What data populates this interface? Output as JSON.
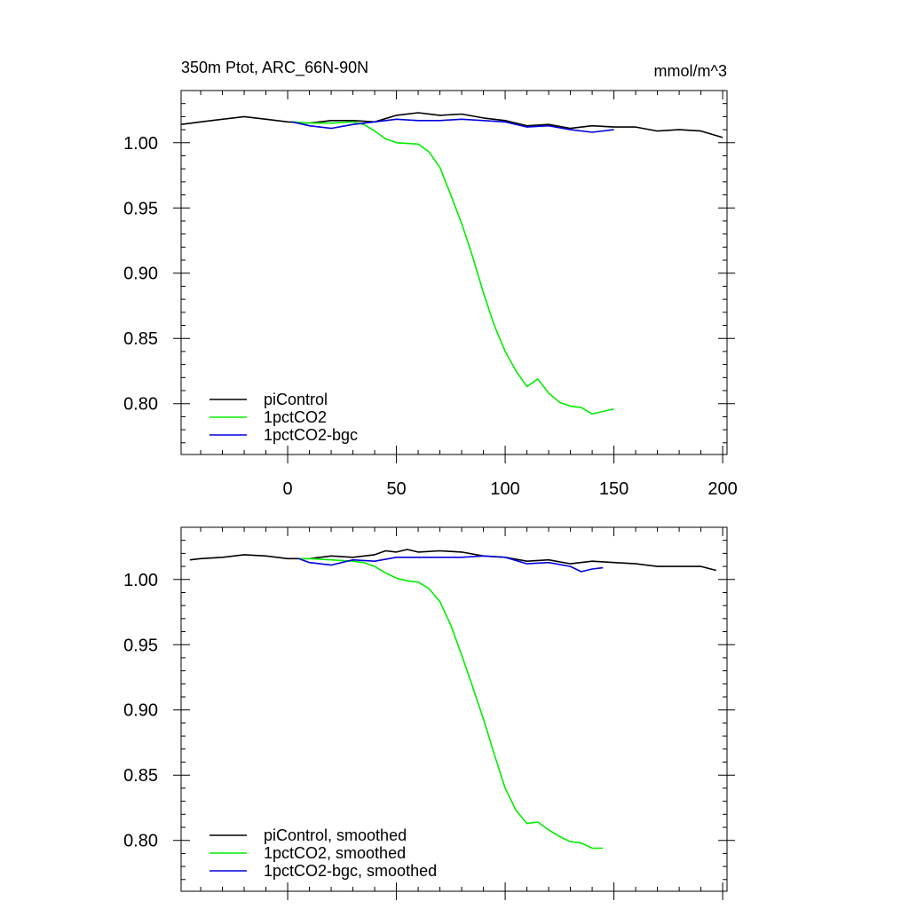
{
  "figure": {
    "title_left": "350m Ptot, ARC_66N-90N",
    "title_right": "mmol/m^3"
  },
  "chart_data": [
    {
      "type": "line",
      "panel": "top",
      "title": "350m Ptot, ARC_66N-90N",
      "units": "mmol/m^3",
      "xlim": [
        -49,
        202
      ],
      "ylim": [
        0.761,
        1.04
      ],
      "xticks": [
        0,
        50,
        100,
        150,
        200
      ],
      "xtick_labels": [
        "0",
        "50",
        "100",
        "150",
        "200"
      ],
      "yticks": [
        0.8,
        0.85,
        0.9,
        0.95,
        1.0
      ],
      "ytick_labels": [
        "0.80",
        "0.85",
        "0.90",
        "0.95",
        "1.00"
      ],
      "legend_position": "bottom-left",
      "series": [
        {
          "name": "piControl",
          "color": "#000000",
          "x": [
            -49,
            -40,
            -30,
            -20,
            -10,
            0,
            10,
            20,
            30,
            40,
            50,
            60,
            70,
            80,
            90,
            100,
            110,
            120,
            130,
            140,
            150,
            160,
            170,
            180,
            190,
            200
          ],
          "y": [
            1.014,
            1.016,
            1.018,
            1.02,
            1.018,
            1.016,
            1.015,
            1.017,
            1.017,
            1.016,
            1.021,
            1.023,
            1.021,
            1.022,
            1.019,
            1.017,
            1.013,
            1.014,
            1.011,
            1.013,
            1.012,
            1.012,
            1.009,
            1.01,
            1.009,
            1.004
          ]
        },
        {
          "name": "1pctCO2",
          "color": "#00ee00",
          "x": [
            2,
            10,
            20,
            30,
            35,
            40,
            45,
            50,
            60,
            65,
            70,
            75,
            80,
            85,
            90,
            95,
            100,
            105,
            110,
            115,
            120,
            125,
            130,
            135,
            140,
            145,
            150
          ],
          "y": [
            1.016,
            1.015,
            1.015,
            1.016,
            1.014,
            1.009,
            1.003,
            1.0,
            0.999,
            0.993,
            0.981,
            0.96,
            0.938,
            0.913,
            0.885,
            0.86,
            0.84,
            0.825,
            0.813,
            0.819,
            0.808,
            0.801,
            0.798,
            0.797,
            0.792,
            0.794,
            0.796
          ]
        },
        {
          "name": "1pctCO2-bgc",
          "color": "#0000dd",
          "x": [
            2,
            10,
            20,
            30,
            40,
            50,
            60,
            70,
            80,
            90,
            100,
            110,
            120,
            130,
            140,
            150
          ],
          "y": [
            1.016,
            1.013,
            1.011,
            1.014,
            1.016,
            1.018,
            1.017,
            1.017,
            1.018,
            1.017,
            1.016,
            1.012,
            1.013,
            1.01,
            1.008,
            1.01
          ]
        }
      ]
    },
    {
      "type": "line",
      "panel": "bottom",
      "xlim": [
        -49,
        202
      ],
      "ylim": [
        0.761,
        1.04
      ],
      "xticks": [
        0,
        50,
        100,
        150,
        200
      ],
      "yticks": [
        0.8,
        0.85,
        0.9,
        0.95,
        1.0
      ],
      "ytick_labels": [
        "0.80",
        "0.85",
        "0.90",
        "0.95",
        "1.00"
      ],
      "legend_position": "bottom-left",
      "series": [
        {
          "name": "piControl, smoothed",
          "color": "#000000",
          "x": [
            -45,
            -40,
            -30,
            -20,
            -10,
            0,
            10,
            20,
            30,
            40,
            45,
            50,
            55,
            60,
            70,
            80,
            90,
            100,
            110,
            120,
            130,
            140,
            150,
            160,
            170,
            180,
            190,
            197
          ],
          "y": [
            1.015,
            1.016,
            1.017,
            1.019,
            1.018,
            1.016,
            1.016,
            1.018,
            1.017,
            1.019,
            1.022,
            1.021,
            1.023,
            1.021,
            1.022,
            1.021,
            1.018,
            1.017,
            1.014,
            1.015,
            1.012,
            1.014,
            1.013,
            1.012,
            1.01,
            1.01,
            1.01,
            1.007
          ]
        },
        {
          "name": "1pctCO2, smoothed",
          "color": "#00ee00",
          "x": [
            5,
            10,
            20,
            30,
            35,
            40,
            45,
            50,
            55,
            60,
            65,
            70,
            75,
            80,
            85,
            90,
            95,
            100,
            105,
            110,
            115,
            120,
            125,
            130,
            135,
            140,
            145
          ],
          "y": [
            1.016,
            1.016,
            1.015,
            1.014,
            1.013,
            1.01,
            1.005,
            1.001,
            0.999,
            0.998,
            0.993,
            0.983,
            0.965,
            0.942,
            0.918,
            0.893,
            0.866,
            0.84,
            0.823,
            0.813,
            0.814,
            0.808,
            0.803,
            0.799,
            0.798,
            0.794,
            0.794
          ]
        },
        {
          "name": "1pctCO2-bgc, smoothed",
          "color": "#0000dd",
          "x": [
            5,
            10,
            20,
            30,
            40,
            50,
            60,
            70,
            80,
            90,
            100,
            110,
            120,
            130,
            135,
            140,
            145
          ],
          "y": [
            1.016,
            1.013,
            1.011,
            1.015,
            1.014,
            1.017,
            1.017,
            1.017,
            1.017,
            1.018,
            1.017,
            1.012,
            1.013,
            1.01,
            1.006,
            1.008,
            1.009
          ]
        }
      ]
    }
  ]
}
